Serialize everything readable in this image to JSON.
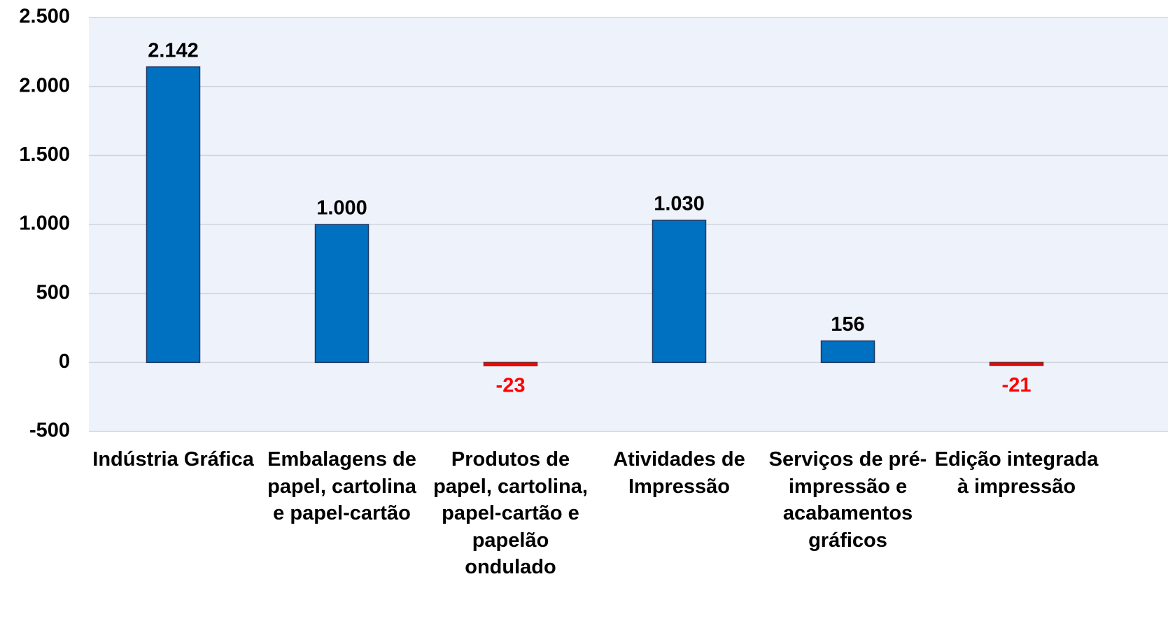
{
  "chart_data": {
    "type": "bar",
    "categories": [
      "Indústria Gráfica",
      "Embalagens de papel, cartolina e papel-cartão",
      "Produtos de papel, cartolina, papel-cartão e papelão ondulado",
      "Atividades de Impressão",
      "Serviços de pré-impressão e acabamentos gráficos",
      "Edição integrada à impressão"
    ],
    "values": [
      2142,
      1000,
      -23,
      1030,
      156,
      -21
    ],
    "value_labels": [
      "2.142",
      "1.000",
      "-23",
      "1.030",
      "156",
      "-21"
    ],
    "color": "#0070c0",
    "negative_color": "#ff0000",
    "ylim": [
      -500,
      2500
    ],
    "yticks": [
      -500,
      0,
      500,
      {
        "value": 1000,
        "label": "1.000"
      },
      {
        "value": 1500,
        "label": "1.500"
      },
      {
        "value": 2000,
        "label": "2.000"
      },
      {
        "value": 2500,
        "label": "2.500"
      }
    ],
    "grid": true
  }
}
